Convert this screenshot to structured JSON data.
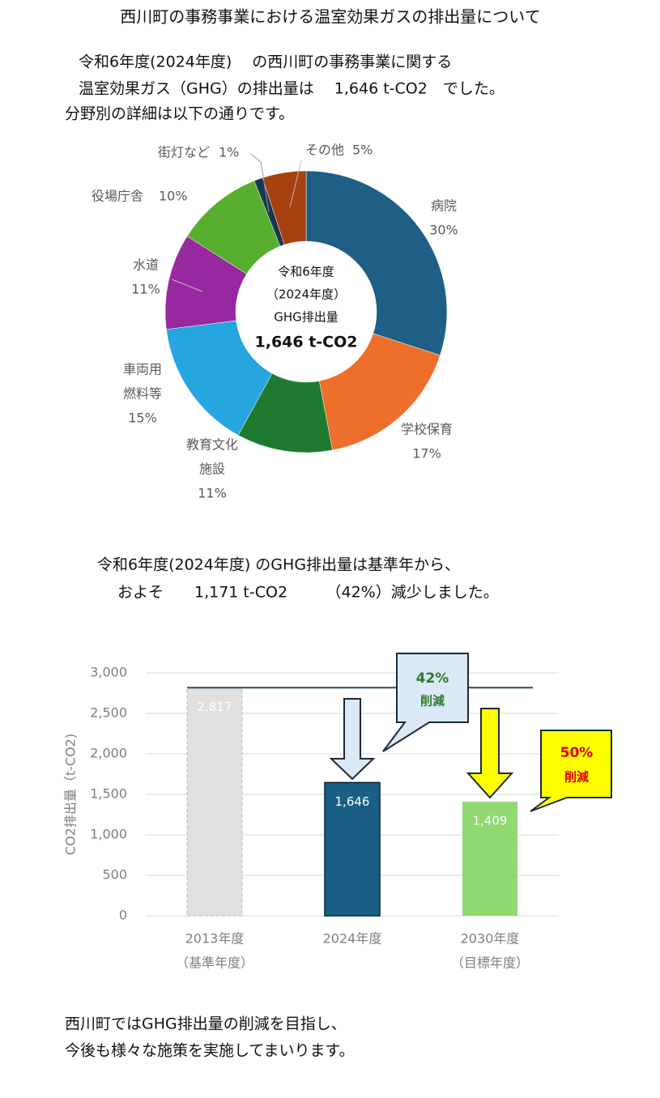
{
  "title": "西川町の事務事業における温室効果ガスの排出量について",
  "intro": [
    "令和6年度(2024年度)　 の西川町の事務事業に関する",
    "温室効果ガス（GHG）の排出量は　 1,646 t-CO2　でした。",
    "分野別の詳細は以下の通りです。"
  ],
  "chart_data": [
    {
      "type": "pie",
      "categories": [
        [
          "病院"
        ],
        [
          "学校保育"
        ],
        [
          "教育文化",
          "施設"
        ],
        [
          "車両用",
          "燃料等"
        ],
        [
          "水道"
        ],
        [
          "役場庁舎"
        ],
        [
          "街灯など"
        ],
        [
          "その他"
        ]
      ],
      "values": [
        30,
        17,
        11,
        15,
        11,
        10,
        1,
        5
      ],
      "value_labels": [
        "30%",
        "17%",
        "11%",
        "15%",
        "11%",
        "10%",
        "1%",
        "5%"
      ],
      "colors": [
        "#1f5f86",
        "#ee6e2c",
        "#1e7a2e",
        "#26a6df",
        "#97289f",
        "#58ae2e",
        "#17384e",
        "#a8400f"
      ],
      "center_text": [
        "令和6年度",
        "（2024年度）",
        "GHG排出量",
        "1,646 t-CO2"
      ]
    },
    {
      "type": "bar",
      "categories": [
        "2013年度",
        "2024年度",
        "2030年度"
      ],
      "sublabels": [
        "（基準年度）",
        null,
        "（目標年度）"
      ],
      "values": [
        2817,
        1646,
        1409
      ],
      "value_labels": [
        "2,817",
        "1,646",
        "1,409"
      ],
      "colors": [
        "#e0e0e0",
        "#1a5f85",
        "#90d870"
      ],
      "ylabel": "CO2排出量（t-CO2)",
      "ylim": [
        0,
        3000
      ],
      "yticks": [
        0,
        500,
        {
          "value": 1000,
          "label": "1,000"
        },
        {
          "value": 1500,
          "label": "1,500"
        },
        {
          "value": 2000,
          "label": "2,000"
        },
        {
          "value": 2500,
          "label": "2,500"
        },
        {
          "value": 3000,
          "label": "3,000"
        }
      ],
      "grid": true,
      "annotations": [
        [
          "42%",
          "削減"
        ],
        [
          "50%",
          "削減"
        ]
      ]
    }
  ],
  "summary": [
    "令和6年度(2024年度) のGHG排出量は基準年から、",
    "およそ　　1,171 t-CO2　　　（42%）減少しました。"
  ],
  "footer": [
    "西川町ではGHG排出量の削減を目指し、",
    "今後も様々な施策を実施してまいります。"
  ]
}
